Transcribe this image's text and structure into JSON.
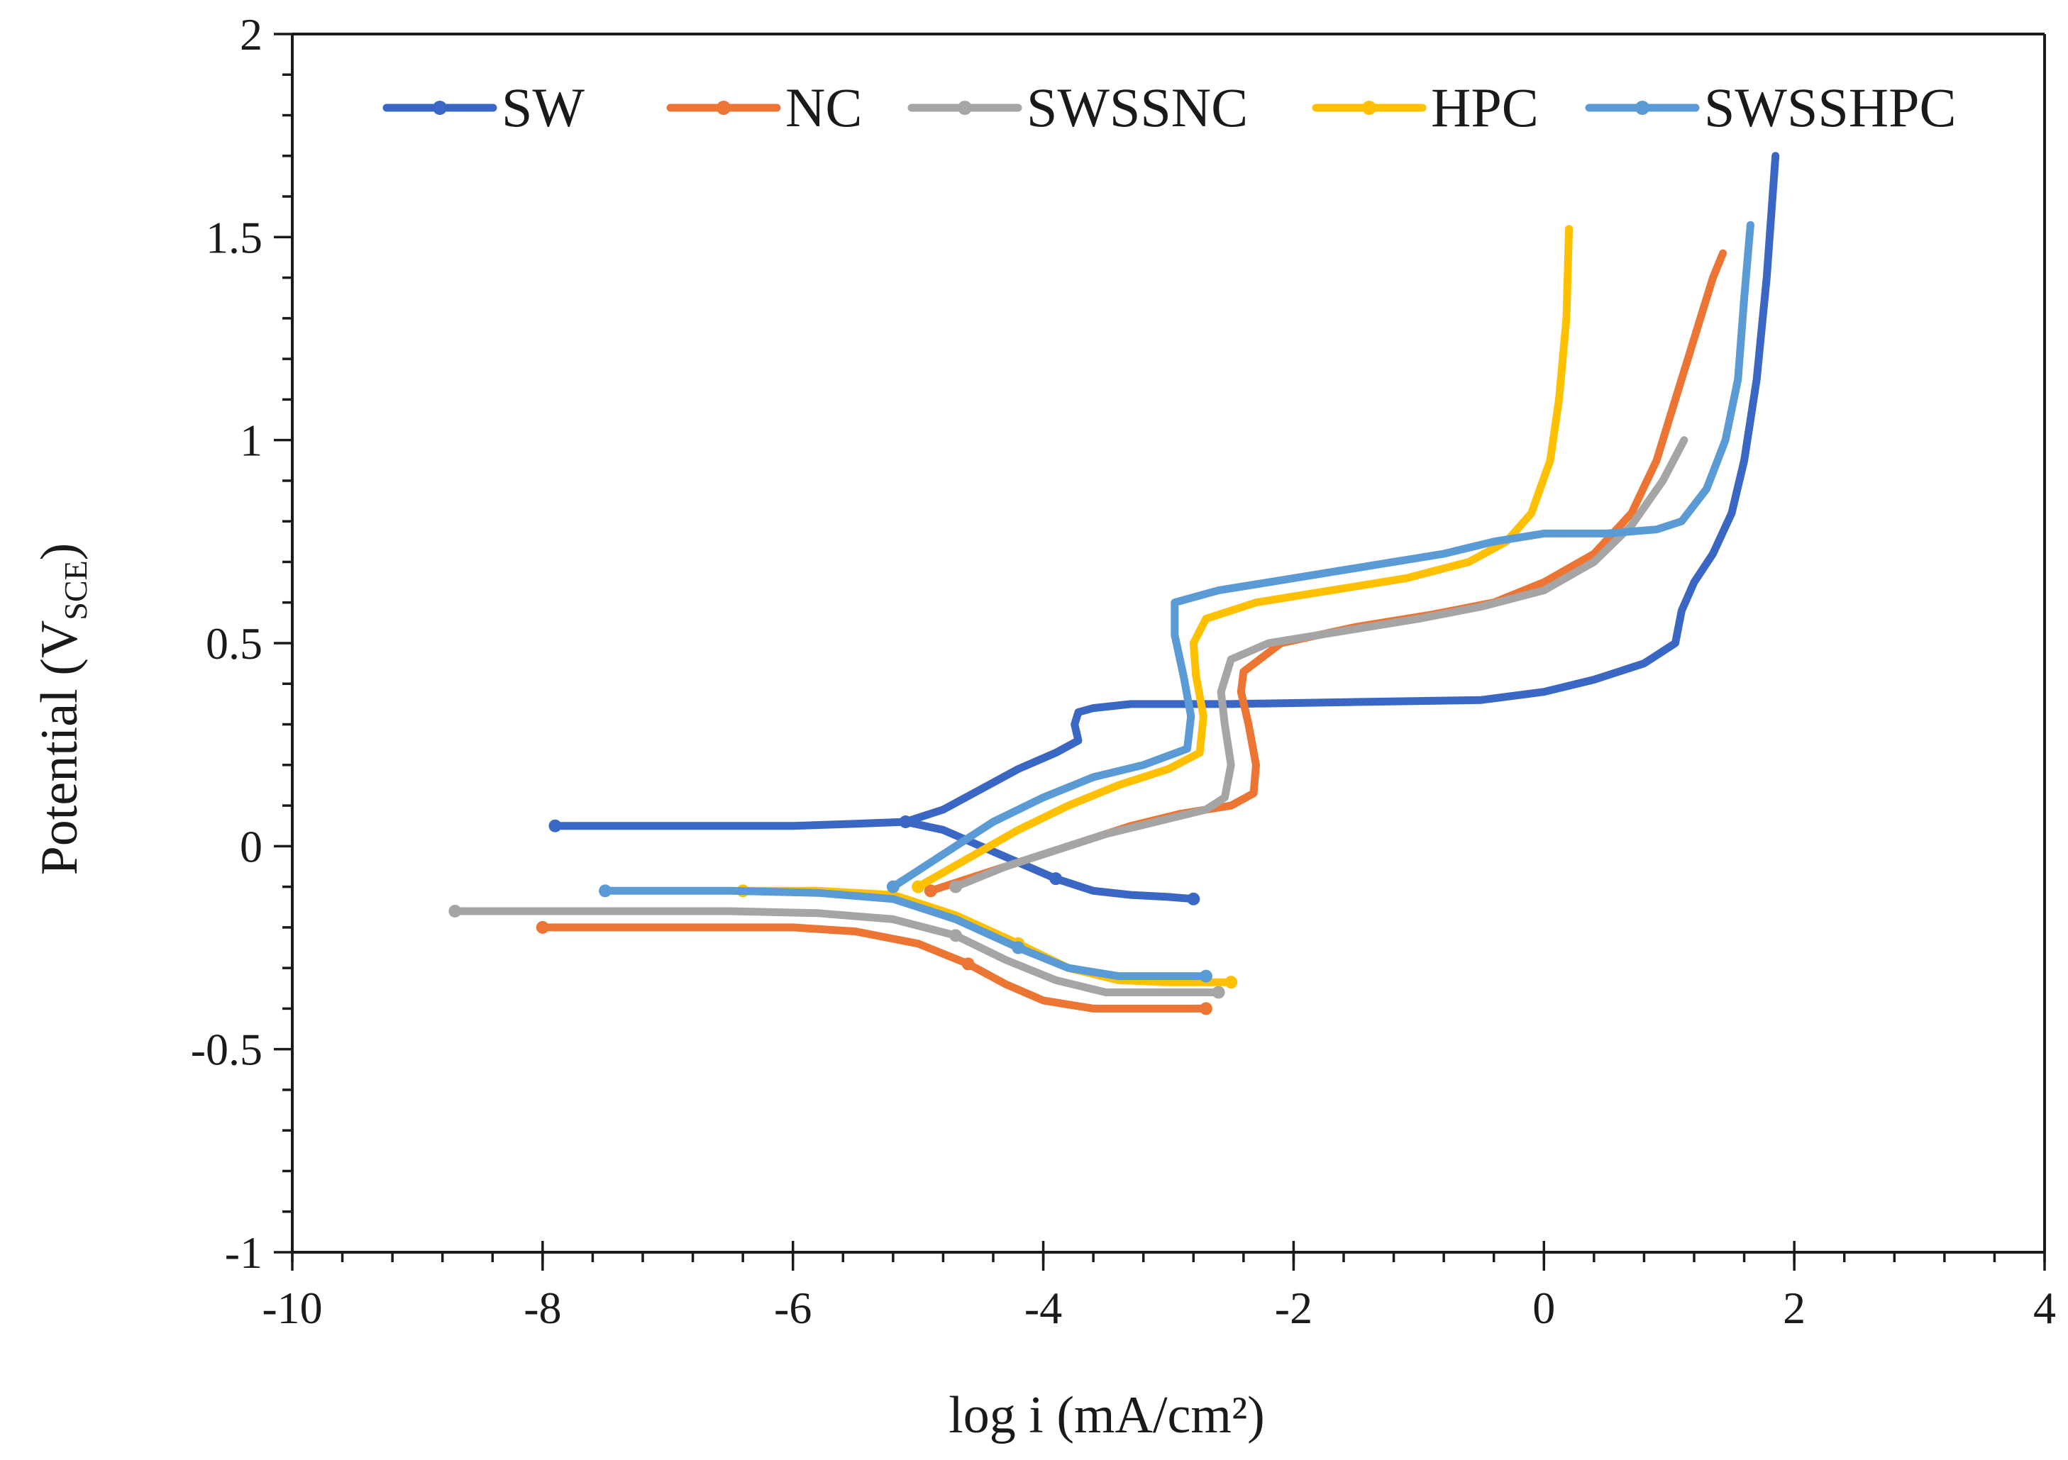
{
  "chart_data": {
    "type": "line",
    "title": "",
    "xlabel": "log i (mA/cm²)",
    "ylabel": {
      "main": "Potential (V",
      "sub": "SCE",
      "close": ")"
    },
    "xlim": [
      -10,
      4
    ],
    "ylim": [
      -1,
      2
    ],
    "x_major_ticks": [
      -10,
      -8,
      -6,
      -4,
      -2,
      0,
      2,
      4
    ],
    "x_minor_step": 0.4,
    "y_major_ticks": [
      -1,
      -0.5,
      0,
      0.5,
      1,
      1.5,
      2
    ],
    "y_minor_step": 0.1,
    "x_tick_labels": [
      "-10",
      "-8",
      "-6",
      "-4",
      "-2",
      "0",
      "2",
      "4"
    ],
    "y_tick_labels": [
      "-1",
      "-0.5",
      "0",
      "0.5",
      "1",
      "1.5",
      "2"
    ],
    "legend_position": "top",
    "series": [
      {
        "name": "SW",
        "color": "#3a66c4",
        "points": [
          [
            -7.9,
            0.05
          ],
          [
            -7.2,
            0.05
          ],
          [
            -6.5,
            0.05
          ],
          [
            -6.0,
            0.05
          ],
          [
            -5.5,
            0.055
          ],
          [
            -5.1,
            0.06
          ],
          [
            -4.8,
            0.09
          ],
          [
            -4.5,
            0.14
          ],
          [
            -4.2,
            0.19
          ],
          [
            -3.9,
            0.23
          ],
          [
            -3.72,
            0.26
          ],
          [
            -3.75,
            0.3
          ],
          [
            -3.72,
            0.33
          ],
          [
            -3.6,
            0.34
          ],
          [
            -3.3,
            0.35
          ],
          [
            -2.5,
            0.35
          ],
          [
            -1.5,
            0.355
          ],
          [
            -0.5,
            0.36
          ],
          [
            0.0,
            0.38
          ],
          [
            0.4,
            0.41
          ],
          [
            0.8,
            0.45
          ],
          [
            1.05,
            0.5
          ],
          [
            1.1,
            0.58
          ],
          [
            1.2,
            0.65
          ],
          [
            1.35,
            0.72
          ],
          [
            1.5,
            0.82
          ],
          [
            1.6,
            0.95
          ],
          [
            1.7,
            1.15
          ],
          [
            1.78,
            1.4
          ],
          [
            1.85,
            1.7
          ]
        ],
        "cathodic": [
          [
            -5.1,
            0.06
          ],
          [
            -4.8,
            0.04
          ],
          [
            -4.5,
            0.0
          ],
          [
            -4.2,
            -0.04
          ],
          [
            -3.9,
            -0.08
          ],
          [
            -3.6,
            -0.11
          ],
          [
            -3.3,
            -0.12
          ],
          [
            -3.0,
            -0.125
          ],
          [
            -2.8,
            -0.13
          ]
        ]
      },
      {
        "name": "NC",
        "color": "#ed7533",
        "points": [
          [
            -4.9,
            -0.11
          ],
          [
            -4.5,
            -0.07
          ],
          [
            -4.1,
            -0.03
          ],
          [
            -3.7,
            0.01
          ],
          [
            -3.3,
            0.05
          ],
          [
            -2.9,
            0.08
          ],
          [
            -2.5,
            0.1
          ],
          [
            -2.32,
            0.13
          ],
          [
            -2.3,
            0.2
          ],
          [
            -2.36,
            0.3
          ],
          [
            -2.42,
            0.38
          ],
          [
            -2.4,
            0.43
          ],
          [
            -2.1,
            0.5
          ],
          [
            -1.5,
            0.54
          ],
          [
            -0.9,
            0.57
          ],
          [
            -0.4,
            0.6
          ],
          [
            0.0,
            0.65
          ],
          [
            0.4,
            0.72
          ],
          [
            0.7,
            0.82
          ],
          [
            0.9,
            0.95
          ],
          [
            1.05,
            1.1
          ],
          [
            1.15,
            1.2
          ],
          [
            1.25,
            1.3
          ],
          [
            1.35,
            1.4
          ],
          [
            1.43,
            1.46
          ]
        ],
        "cathodic": [
          [
            -8.0,
            -0.2
          ],
          [
            -7.0,
            -0.2
          ],
          [
            -6.0,
            -0.2
          ],
          [
            -5.5,
            -0.21
          ],
          [
            -5.0,
            -0.24
          ],
          [
            -4.6,
            -0.29
          ],
          [
            -4.3,
            -0.34
          ],
          [
            -4.0,
            -0.38
          ],
          [
            -3.6,
            -0.4
          ],
          [
            -3.0,
            -0.4
          ],
          [
            -2.7,
            -0.4
          ]
        ]
      },
      {
        "name": "SWSSNC",
        "color": "#a5a5a5",
        "points": [
          [
            -4.7,
            -0.1
          ],
          [
            -4.3,
            -0.05
          ],
          [
            -3.9,
            -0.01
          ],
          [
            -3.5,
            0.03
          ],
          [
            -3.1,
            0.06
          ],
          [
            -2.7,
            0.09
          ],
          [
            -2.55,
            0.12
          ],
          [
            -2.5,
            0.2
          ],
          [
            -2.55,
            0.3
          ],
          [
            -2.58,
            0.38
          ],
          [
            -2.5,
            0.46
          ],
          [
            -2.2,
            0.5
          ],
          [
            -1.6,
            0.53
          ],
          [
            -1.0,
            0.56
          ],
          [
            -0.5,
            0.59
          ],
          [
            0.0,
            0.63
          ],
          [
            0.4,
            0.7
          ],
          [
            0.7,
            0.79
          ],
          [
            0.95,
            0.9
          ],
          [
            1.12,
            1.0
          ]
        ],
        "cathodic": [
          [
            -8.7,
            -0.16
          ],
          [
            -7.5,
            -0.16
          ],
          [
            -6.5,
            -0.16
          ],
          [
            -5.8,
            -0.165
          ],
          [
            -5.2,
            -0.18
          ],
          [
            -4.7,
            -0.22
          ],
          [
            -4.3,
            -0.28
          ],
          [
            -3.9,
            -0.33
          ],
          [
            -3.5,
            -0.36
          ],
          [
            -3.0,
            -0.36
          ],
          [
            -2.6,
            -0.36
          ]
        ]
      },
      {
        "name": "HPC",
        "color": "#ffc000",
        "points": [
          [
            -5.0,
            -0.1
          ],
          [
            -4.6,
            -0.03
          ],
          [
            -4.2,
            0.04
          ],
          [
            -3.8,
            0.1
          ],
          [
            -3.4,
            0.15
          ],
          [
            -3.0,
            0.19
          ],
          [
            -2.75,
            0.23
          ],
          [
            -2.72,
            0.32
          ],
          [
            -2.78,
            0.42
          ],
          [
            -2.8,
            0.5
          ],
          [
            -2.7,
            0.56
          ],
          [
            -2.3,
            0.6
          ],
          [
            -1.7,
            0.63
          ],
          [
            -1.1,
            0.66
          ],
          [
            -0.6,
            0.7
          ],
          [
            -0.3,
            0.75
          ],
          [
            -0.1,
            0.82
          ],
          [
            0.05,
            0.95
          ],
          [
            0.12,
            1.1
          ],
          [
            0.18,
            1.3
          ],
          [
            0.2,
            1.52
          ]
        ],
        "cathodic": [
          [
            -6.4,
            -0.11
          ],
          [
            -5.8,
            -0.11
          ],
          [
            -5.2,
            -0.12
          ],
          [
            -4.7,
            -0.17
          ],
          [
            -4.2,
            -0.24
          ],
          [
            -3.8,
            -0.3
          ],
          [
            -3.4,
            -0.33
          ],
          [
            -3.0,
            -0.335
          ],
          [
            -2.5,
            -0.335
          ]
        ]
      },
      {
        "name": "SWSSHPC",
        "color": "#5b9bd5",
        "points": [
          [
            -5.2,
            -0.1
          ],
          [
            -4.8,
            -0.02
          ],
          [
            -4.4,
            0.06
          ],
          [
            -4.0,
            0.12
          ],
          [
            -3.6,
            0.17
          ],
          [
            -3.2,
            0.2
          ],
          [
            -2.85,
            0.24
          ],
          [
            -2.82,
            0.32
          ],
          [
            -2.88,
            0.42
          ],
          [
            -2.95,
            0.52
          ],
          [
            -2.95,
            0.6
          ],
          [
            -2.6,
            0.63
          ],
          [
            -2.0,
            0.66
          ],
          [
            -1.4,
            0.69
          ],
          [
            -0.8,
            0.72
          ],
          [
            -0.4,
            0.75
          ],
          [
            0.0,
            0.77
          ],
          [
            0.5,
            0.77
          ],
          [
            0.9,
            0.78
          ],
          [
            1.1,
            0.8
          ],
          [
            1.3,
            0.88
          ],
          [
            1.45,
            1.0
          ],
          [
            1.55,
            1.15
          ],
          [
            1.6,
            1.35
          ],
          [
            1.65,
            1.53
          ]
        ],
        "cathodic": [
          [
            -7.5,
            -0.11
          ],
          [
            -6.5,
            -0.11
          ],
          [
            -5.8,
            -0.115
          ],
          [
            -5.2,
            -0.13
          ],
          [
            -4.7,
            -0.18
          ],
          [
            -4.2,
            -0.25
          ],
          [
            -3.8,
            -0.3
          ],
          [
            -3.4,
            -0.32
          ],
          [
            -3.0,
            -0.32
          ],
          [
            -2.7,
            -0.32
          ]
        ]
      }
    ]
  }
}
